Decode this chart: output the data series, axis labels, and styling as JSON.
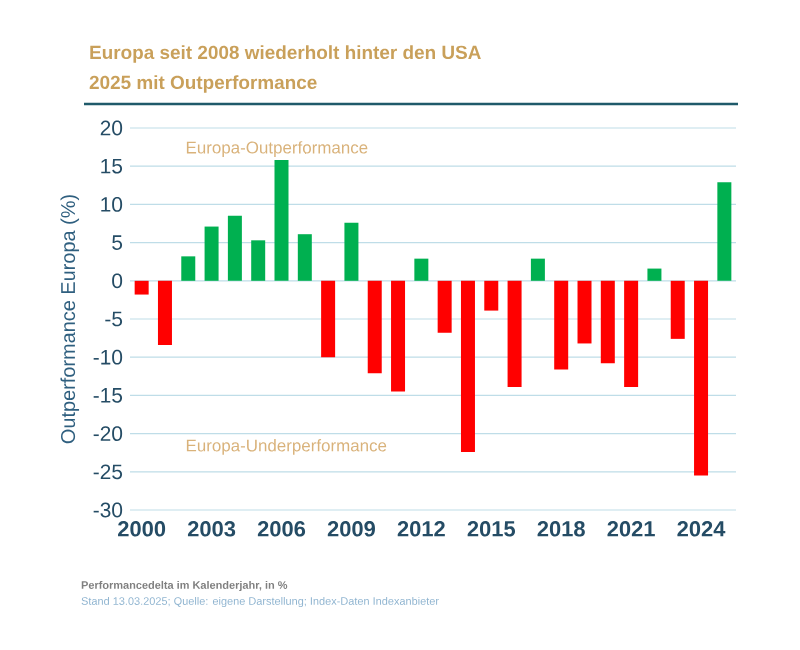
{
  "chart_data": {
    "type": "bar",
    "title": "Europa seit 2008 wiederholt hinter den USA",
    "subtitle": "2025 mit Outperformance",
    "ylabel": "Outperformance Europa (%)",
    "categories": [
      "2000",
      null,
      null,
      "2003",
      null,
      null,
      "2006",
      null,
      null,
      "2009",
      null,
      null,
      "2012",
      null,
      null,
      "2015",
      null,
      null,
      "2018",
      null,
      null,
      "2021",
      null,
      null,
      "2024",
      null
    ],
    "values": [
      -1.8,
      -8.4,
      3.2,
      7.1,
      8.5,
      5.3,
      15.8,
      6.1,
      -10,
      7.6,
      -12.1,
      -14.5,
      2.9,
      -6.8,
      -22.4,
      -3.9,
      -13.9,
      2.9,
      -11.6,
      -8.2,
      -10.8,
      -13.9,
      1.6,
      -7.6,
      -25.5,
      12.9
    ],
    "colors": [
      "#ff0000",
      "#ff0000",
      "#00b050",
      "#00b050",
      "#00b050",
      "#00b050",
      "#00b050",
      "#00b050",
      "#ff0000",
      "#00b050",
      "#ff0000",
      "#ff0000",
      "#00b050",
      "#ff0000",
      "#ff0000",
      "#ff0000",
      "#ff0000",
      "#00b050",
      "#ff0000",
      "#ff0000",
      "#ff0000",
      "#ff0000",
      "#00b050",
      "#ff0000",
      "#ff0000",
      "#00b050"
    ],
    "ylim": [
      -30,
      20
    ],
    "yticks": [
      -30,
      -25,
      -20,
      -15,
      -10,
      -5,
      0,
      5,
      10,
      15,
      20
    ],
    "grid": "y",
    "annotations": [
      "Europa-Outperformance",
      "Europa-Underperformance",
      "Performancedelta im Kalenderjahr, in %",
      "Stand 13.03.2025; Quelle: eigene Darstellung; Index-Daten Indexanbieter"
    ]
  }
}
